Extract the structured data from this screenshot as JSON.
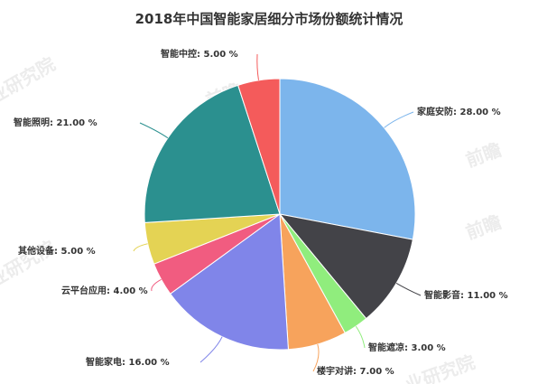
{
  "chart_data": {
    "type": "pie",
    "title": "2018年中国智能家居细分市场份额统计情况",
    "start_angle_deg": 0,
    "direction": "clockwise",
    "slices": [
      {
        "label": "家庭安防",
        "value": 28.0,
        "display": "家庭安防: 28.00 %",
        "color": "#7cb5ec"
      },
      {
        "label": "智能影音",
        "value": 11.0,
        "display": "智能影音: 11.00 %",
        "color": "#434348"
      },
      {
        "label": "智能遮凉",
        "value": 3.0,
        "display": "智能遮凉: 3.00 %",
        "color": "#90ed7d"
      },
      {
        "label": "楼宇对讲",
        "value": 7.0,
        "display": "楼宇对讲: 7.00 %",
        "color": "#f7a35c"
      },
      {
        "label": "智能家电",
        "value": 16.0,
        "display": "智能家电: 16.00 %",
        "color": "#8085e9"
      },
      {
        "label": "云平台应用",
        "value": 4.0,
        "display": "云平台应用: 4.00 %",
        "color": "#f15c80"
      },
      {
        "label": "其他设备",
        "value": 5.0,
        "display": "其他设备: 5.00 %",
        "color": "#e4d354"
      },
      {
        "label": "智能照明",
        "value": 21.0,
        "display": "智能照明: 21.00 %",
        "color": "#2b908f"
      },
      {
        "label": "智能中控",
        "value": 5.0,
        "display": "智能中控: 5.00 %",
        "color": "#f45b5b"
      }
    ]
  },
  "watermarks": [
    "前瞻",
    "前瞻",
    "前瞻",
    "前瞻",
    "前瞻",
    "业研究院",
    "业研究院",
    "业研究院"
  ]
}
